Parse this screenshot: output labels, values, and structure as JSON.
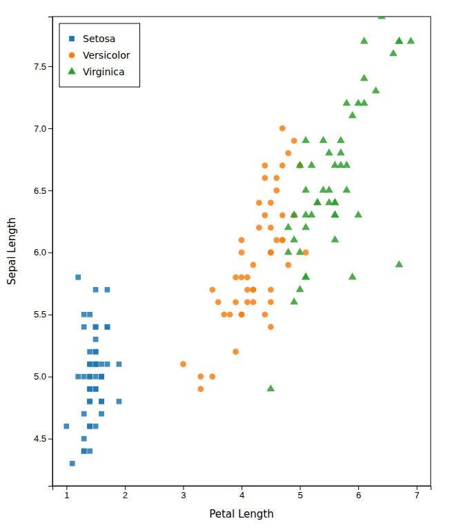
{
  "chart_data": {
    "type": "scatter",
    "xlabel": "Petal Length",
    "ylabel": "Sepal Length",
    "xlim": [
      0.76,
      7.24
    ],
    "ylim": [
      4.12,
      7.9
    ],
    "xticks": [
      1,
      2,
      3,
      4,
      5,
      6,
      7
    ],
    "yticks": [
      4.5,
      {
        "value": 5.0,
        "label": "5.0"
      },
      5.5,
      {
        "value": 6.0,
        "label": "6.0"
      },
      6.5,
      {
        "value": 7.0,
        "label": "7.0"
      },
      7.5
    ],
    "legend": "upper left",
    "series": [
      {
        "name": "Setosa",
        "marker": "square",
        "x": [
          1.4,
          1.4,
          1.3,
          1.5,
          1.4,
          1.7,
          1.4,
          1.5,
          1.4,
          1.5,
          1.5,
          1.6,
          1.4,
          1.1,
          1.2,
          1.5,
          1.3,
          1.4,
          1.7,
          1.5,
          1.7,
          1.5,
          1.0,
          1.7,
          1.9,
          1.6,
          1.6,
          1.5,
          1.4,
          1.6,
          1.6,
          1.5,
          1.5,
          1.4,
          1.5,
          1.2,
          1.3,
          1.4,
          1.3,
          1.5,
          1.3,
          1.3,
          1.3,
          1.6,
          1.9,
          1.4,
          1.6,
          1.4,
          1.5,
          1.4
        ],
        "values": [
          5.1,
          4.9,
          4.7,
          4.6,
          5.0,
          5.4,
          4.6,
          5.0,
          4.4,
          4.9,
          5.4,
          4.8,
          4.8,
          4.3,
          5.8,
          5.7,
          5.4,
          5.1,
          5.7,
          5.1,
          5.4,
          5.1,
          4.6,
          5.1,
          4.8,
          5.0,
          5.0,
          5.2,
          5.2,
          4.7,
          4.8,
          5.4,
          5.2,
          5.5,
          4.9,
          5.0,
          5.5,
          4.9,
          4.4,
          5.1,
          5.0,
          4.5,
          4.4,
          5.0,
          5.1,
          4.8,
          5.1,
          4.6,
          5.3,
          5.0
        ]
      },
      {
        "name": "Versicolor",
        "marker": "circle",
        "x": [
          4.7,
          4.5,
          4.9,
          4.0,
          4.6,
          4.5,
          4.7,
          3.3,
          4.6,
          3.9,
          3.5,
          4.2,
          4.0,
          4.7,
          3.6,
          4.4,
          4.5,
          4.1,
          4.5,
          3.9,
          4.8,
          4.0,
          4.9,
          4.7,
          4.3,
          4.4,
          4.8,
          5.0,
          4.5,
          3.5,
          3.8,
          3.7,
          3.9,
          5.1,
          4.5,
          4.5,
          4.7,
          4.4,
          4.1,
          4.0,
          4.4,
          4.6,
          4.0,
          3.3,
          4.2,
          4.2,
          4.2,
          4.3,
          3.0,
          4.1
        ],
        "values": [
          7.0,
          6.4,
          6.9,
          5.5,
          6.5,
          5.7,
          6.3,
          4.9,
          6.6,
          5.2,
          5.0,
          5.9,
          6.0,
          6.1,
          5.6,
          6.7,
          5.6,
          5.8,
          6.2,
          5.6,
          5.9,
          6.1,
          6.3,
          6.1,
          6.4,
          6.6,
          6.8,
          6.7,
          6.0,
          5.7,
          5.5,
          5.5,
          5.8,
          6.0,
          5.4,
          6.0,
          6.7,
          6.3,
          5.6,
          5.5,
          5.5,
          6.1,
          5.8,
          5.0,
          5.6,
          5.7,
          5.7,
          6.2,
          5.1,
          5.7
        ]
      },
      {
        "name": "Virginica",
        "marker": "triangle",
        "x": [
          6.0,
          5.1,
          5.9,
          5.6,
          5.8,
          6.6,
          4.5,
          6.3,
          5.8,
          6.1,
          5.1,
          5.3,
          5.5,
          5.0,
          5.1,
          5.3,
          5.5,
          6.7,
          6.9,
          5.0,
          5.7,
          4.9,
          6.7,
          4.9,
          5.7,
          6.0,
          4.8,
          4.9,
          5.6,
          5.8,
          6.1,
          6.4,
          5.6,
          5.1,
          5.6,
          6.1,
          5.6,
          5.5,
          4.8,
          5.4,
          5.6,
          5.1,
          5.9,
          5.7,
          5.2,
          5.0,
          5.2,
          5.4,
          5.1,
          6.7
        ],
        "values": [
          6.3,
          5.8,
          7.1,
          6.3,
          6.5,
          7.6,
          4.9,
          7.3,
          6.7,
          7.2,
          6.5,
          6.4,
          6.8,
          5.7,
          5.8,
          6.4,
          6.5,
          7.7,
          7.7,
          6.0,
          6.9,
          5.6,
          7.7,
          6.3,
          6.7,
          7.2,
          6.2,
          6.1,
          6.4,
          7.2,
          7.4,
          7.9,
          6.4,
          6.3,
          6.1,
          7.7,
          6.3,
          6.4,
          6.0,
          6.9,
          6.7,
          6.9,
          5.8,
          6.8,
          6.7,
          6.7,
          6.3,
          6.5,
          6.2,
          5.9
        ]
      }
    ]
  }
}
